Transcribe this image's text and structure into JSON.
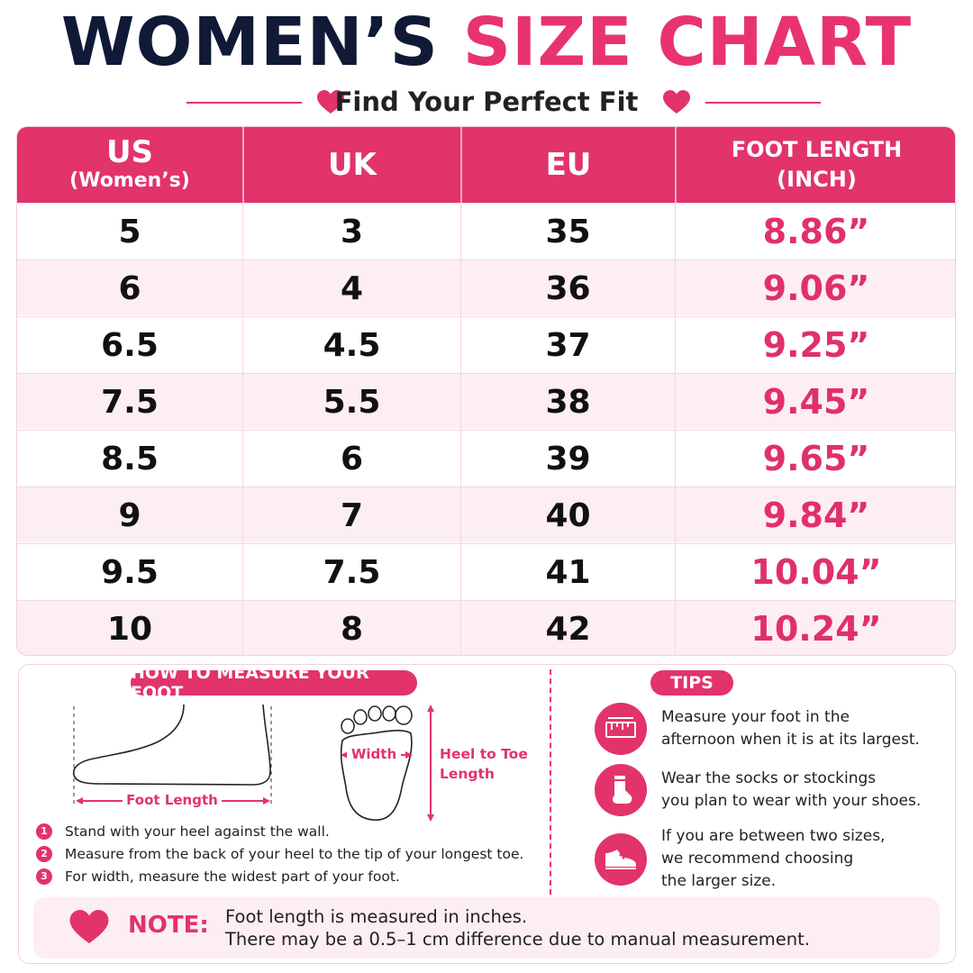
{
  "title": {
    "part1": "WOMEN’S",
    "part2": "SIZE CHART"
  },
  "subtitle": "Find Your Perfect Fit",
  "table": {
    "headers": [
      {
        "main": "US",
        "sub": "(Women’s)"
      },
      {
        "main": "UK"
      },
      {
        "main": "EU"
      },
      {
        "line1": "FOOT LENGTH",
        "line2": "(INCH)"
      }
    ],
    "rows": [
      [
        "5",
        "3",
        "35",
        "8.86”"
      ],
      [
        "6",
        "4",
        "36",
        "9.06”"
      ],
      [
        "6.5",
        "4.5",
        "37",
        "9.25”"
      ],
      [
        "7.5",
        "5.5",
        "38",
        "9.45”"
      ],
      [
        "8.5",
        "6",
        "39",
        "9.65”"
      ],
      [
        "9",
        "7",
        "40",
        "9.84”"
      ],
      [
        "9.5",
        "7.5",
        "41",
        "10.04”"
      ],
      [
        "10",
        "8",
        "42",
        "10.24”"
      ]
    ]
  },
  "measure": {
    "heading": "HOW TO MEASURE YOUR FOOT",
    "foot_length_label": "Foot Length",
    "width_label": "Width",
    "heel_to_toe_label": [
      "Heel to Toe",
      "Length"
    ],
    "steps": [
      {
        "num": "1",
        "text": "Stand with your heel against the wall."
      },
      {
        "num": "2",
        "text": "Measure from the back of your heel to the tip of your longest toe."
      },
      {
        "num": "3",
        "text": "For width, measure the widest part of your foot."
      }
    ]
  },
  "tips": {
    "heading": "TIPS",
    "items": [
      {
        "icon": "ruler-icon",
        "lines": [
          "Measure your foot in the",
          "afternoon when it is at its largest."
        ]
      },
      {
        "icon": "sock-icon",
        "lines": [
          "Wear the socks or stockings",
          "you plan to wear with your shoes."
        ]
      },
      {
        "icon": "shoe-icon",
        "lines": [
          "If you are between two sizes,",
          "we recommend choosing",
          "the larger size."
        ]
      }
    ]
  },
  "note": {
    "label": "NOTE:",
    "lines": [
      "Foot length is measured in inches.",
      "There may be a 0.5–1 cm difference due to manual measurement."
    ]
  },
  "colors": {
    "accent": "#e2336b",
    "navy": "#101a36",
    "row_tint": "#fdeef3"
  }
}
